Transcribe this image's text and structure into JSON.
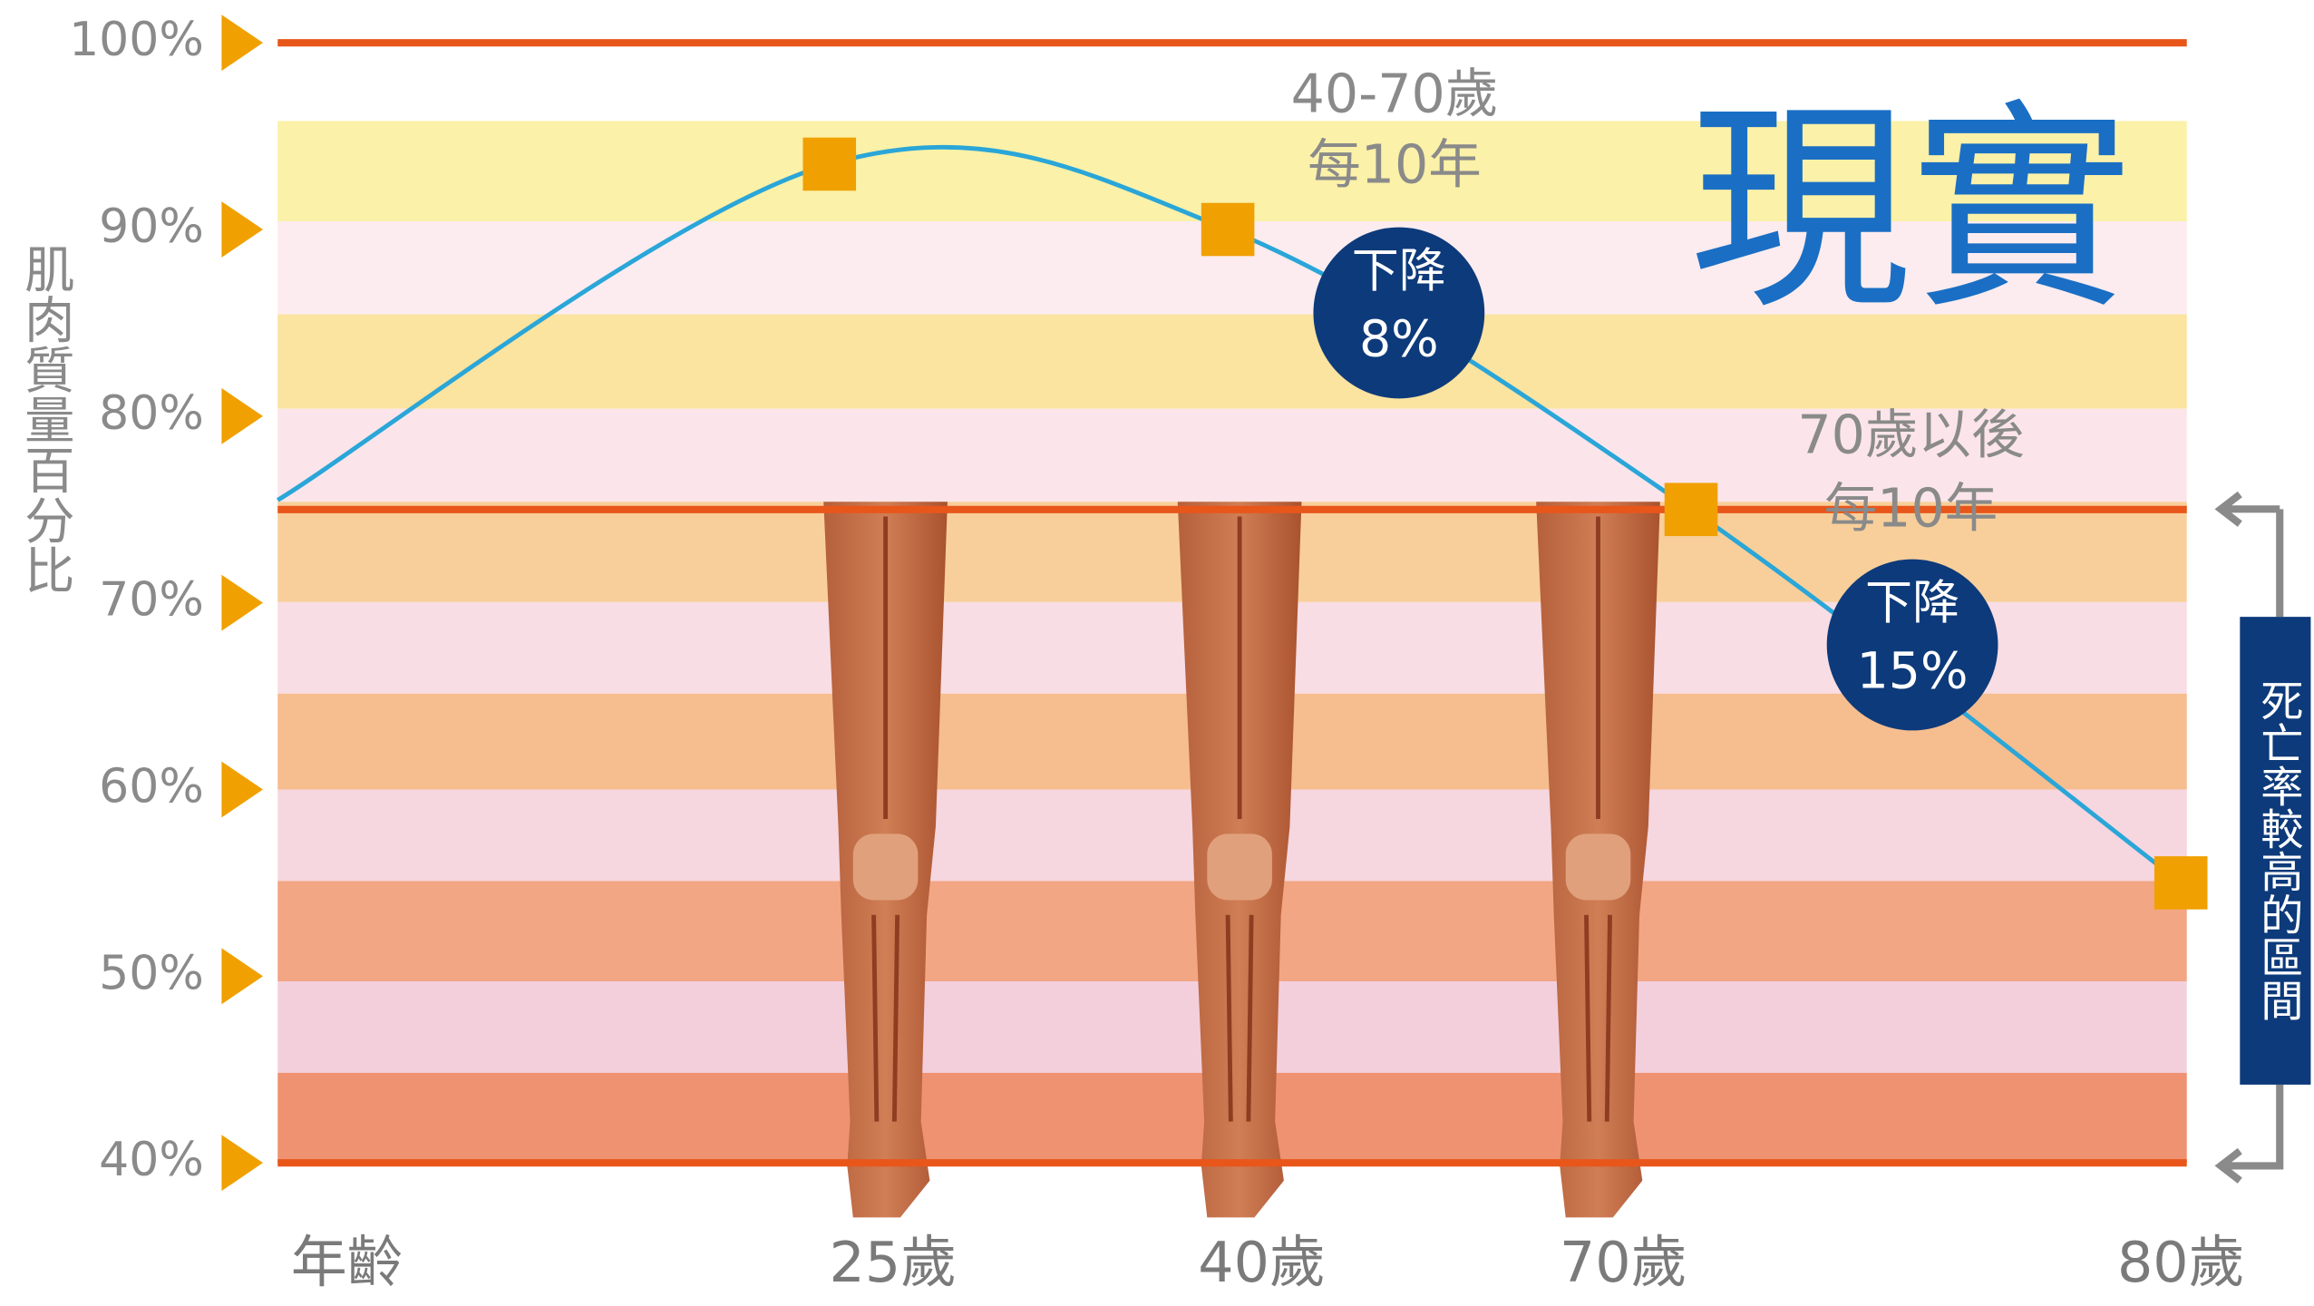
{
  "chart_data": {
    "type": "line",
    "y_label": "肌肉質量百分比",
    "x_label": "年齡",
    "categories": [
      null,
      "25歲",
      "40歲",
      "70歲",
      "80歲"
    ],
    "series": [
      {
        "name": "肌肉質量",
        "color": "#2aa6d8",
        "marker_color": "#f0a000",
        "values": [
          75.5,
          93.5,
          90,
          75,
          55
        ]
      }
    ],
    "ylim": [
      40,
      100
    ],
    "yticks": [
      {
        "value": 40,
        "label": "40%"
      },
      {
        "value": 50,
        "label": "50%"
      },
      {
        "value": 60,
        "label": "60%"
      },
      {
        "value": 70,
        "label": "70%"
      },
      {
        "value": 80,
        "label": "80%"
      },
      {
        "value": 90,
        "label": "90%"
      },
      {
        "value": 100,
        "label": "100%"
      }
    ],
    "reference_lines": [
      100,
      75,
      40
    ],
    "reference_color": "#e8561a",
    "title_annotation": "現實",
    "annotations": {
      "range1": [
        "40-70歲",
        "每10年"
      ],
      "badge1": [
        "下降",
        "8%"
      ],
      "range2": [
        "70歲以後",
        "每10年"
      ],
      "badge2": [
        "下降",
        "15%"
      ],
      "zone": "死亡率較高的區間"
    }
  }
}
